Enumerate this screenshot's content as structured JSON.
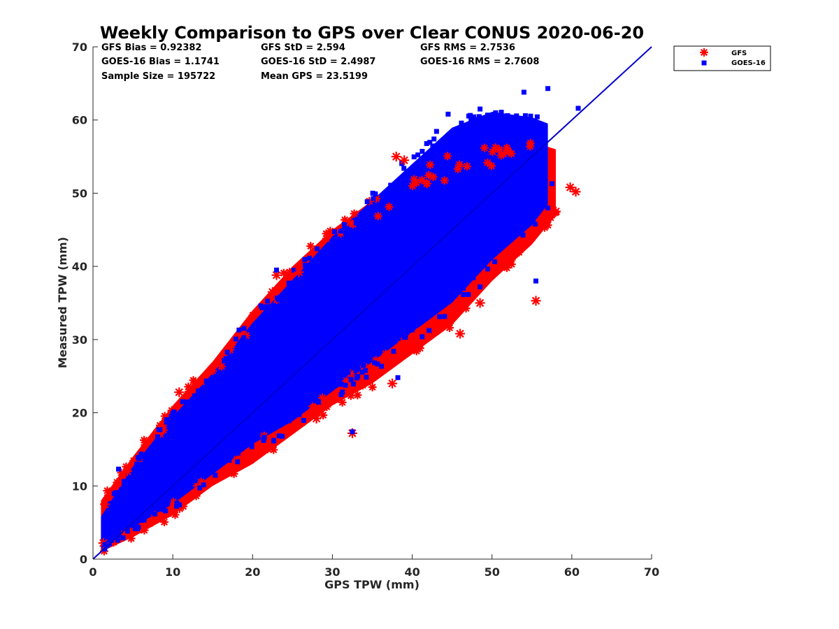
{
  "chart_data": {
    "type": "scatter",
    "title": "Weekly Comparison to GPS over Clear CONUS 2020-06-20",
    "xlabel": "GPS TPW (mm)",
    "ylabel": "Measured TPW (mm)",
    "xlim": [
      0,
      70
    ],
    "ylim": [
      0,
      70
    ],
    "xticks": [
      "0",
      "10",
      "20",
      "30",
      "40",
      "50",
      "60",
      "70"
    ],
    "yticks": [
      "0",
      "10",
      "20",
      "30",
      "40",
      "50",
      "60",
      "70"
    ],
    "grid": false,
    "legend_position": "outside top-right",
    "stats": [
      "GFS Bias = 0.92382",
      "GFS StD = 2.594",
      "GFS RMS = 2.7536",
      "GOES-16 Bias = 1.1741",
      "GOES-16 StD = 2.4987",
      "GOES-16 RMS = 2.7608",
      "Sample Size = 195722",
      "Mean GPS = 23.5199"
    ],
    "reference_line": {
      "from": [
        0,
        0
      ],
      "to": [
        70,
        70
      ],
      "color": "#0000cc"
    },
    "series": [
      {
        "name": "GFS",
        "marker": "asterisk",
        "color": "#ff0000",
        "band": [
          [
            1,
            1,
            8
          ],
          [
            5,
            3,
            14
          ],
          [
            10,
            6,
            21
          ],
          [
            15,
            10,
            27
          ],
          [
            20,
            13,
            34
          ],
          [
            25,
            17,
            40
          ],
          [
            30,
            21,
            45
          ],
          [
            35,
            24,
            49
          ],
          [
            40,
            28,
            53
          ],
          [
            45,
            32,
            55
          ],
          [
            50,
            38,
            56
          ],
          [
            55,
            43,
            57
          ],
          [
            58,
            47,
            56
          ]
        ],
        "outliers": [
          [
            32.5,
            17.2
          ],
          [
            55.5,
            35.3
          ],
          [
            60.5,
            50.2
          ],
          [
            59.8,
            50.8
          ],
          [
            58.0,
            47.5
          ],
          [
            55.0,
            44.5
          ],
          [
            38.0,
            55.0
          ],
          [
            23.0,
            38.8
          ],
          [
            22.5,
            36.5
          ],
          [
            46.0,
            30.8
          ],
          [
            48.5,
            35.0
          ],
          [
            37.5,
            24.0
          ],
          [
            28.0,
            19.2
          ],
          [
            1.5,
            7.5
          ],
          [
            1.3,
            2.2
          ],
          [
            52.5,
            41.3
          ],
          [
            25.8,
            39.2
          ],
          [
            4.3,
            12.0
          ],
          [
            10.8,
            22.8
          ],
          [
            39.0,
            54.5
          ]
        ]
      },
      {
        "name": "GOES-16",
        "marker": "square",
        "color": "#0000ff",
        "band": [
          [
            1,
            1,
            6
          ],
          [
            5,
            4,
            13
          ],
          [
            10,
            7,
            20
          ],
          [
            15,
            11,
            26
          ],
          [
            20,
            15,
            33
          ],
          [
            25,
            18,
            39
          ],
          [
            30,
            22,
            45
          ],
          [
            35,
            26,
            50
          ],
          [
            40,
            30,
            55
          ],
          [
            45,
            34,
            60
          ],
          [
            50,
            40,
            62
          ],
          [
            55,
            45,
            61
          ],
          [
            57,
            48,
            60
          ]
        ],
        "outliers": [
          [
            32.5,
            17.4
          ],
          [
            55.5,
            38.0
          ],
          [
            48.5,
            37.2
          ],
          [
            54.0,
            63.8
          ],
          [
            57.0,
            64.3
          ],
          [
            60.8,
            61.6
          ],
          [
            44.5,
            60.8
          ],
          [
            48.5,
            61.5
          ],
          [
            18.3,
            31.3
          ],
          [
            23.0,
            39.5
          ],
          [
            21.5,
            32.3
          ],
          [
            38.2,
            24.8
          ],
          [
            3.2,
            12.3
          ],
          [
            1.5,
            2.0
          ],
          [
            57.5,
            51.3
          ],
          [
            56.0,
            48.7
          ]
        ]
      }
    ]
  }
}
